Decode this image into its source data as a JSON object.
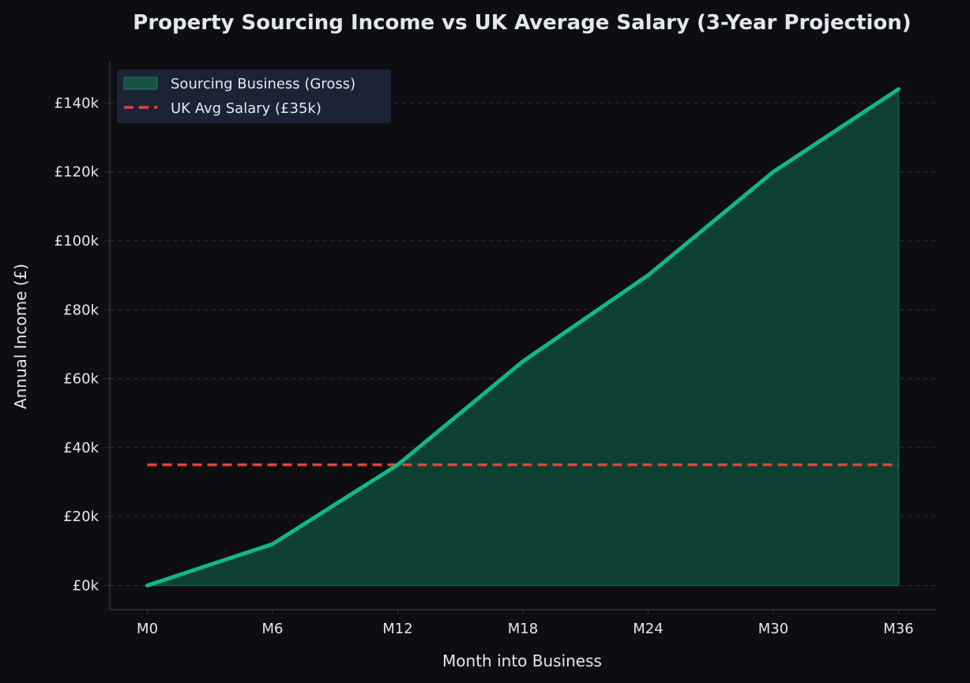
{
  "chart_data": {
    "type": "area",
    "title": "Property Sourcing Income vs UK Average Salary (3-Year Projection)",
    "xlabel": "Month into Business",
    "ylabel": "Annual Income (£)",
    "categories": [
      "M0",
      "M6",
      "M12",
      "M18",
      "M24",
      "M30",
      "M36"
    ],
    "x": [
      0,
      6,
      12,
      18,
      24,
      30,
      36
    ],
    "xlim": [
      -1.8,
      37.8
    ],
    "ylim": [
      -7000,
      152000
    ],
    "yticks": [
      0,
      20000,
      40000,
      60000,
      80000,
      100000,
      120000,
      140000
    ],
    "ytick_labels": [
      "£0k",
      "£20k",
      "£40k",
      "£60k",
      "£80k",
      "£100k",
      "£120k",
      "£140k"
    ],
    "grid": "y-dashed",
    "legend_position": "top-left",
    "series": [
      {
        "name": "Sourcing Business (Gross)",
        "kind": "area-line",
        "values": [
          0,
          12000,
          35000,
          65000,
          90000,
          120000,
          144000
        ],
        "color": "#10b981",
        "fill_color": "#0d3f33"
      },
      {
        "name": "UK Avg Salary (£35k)",
        "kind": "dashed-line",
        "values": [
          35000,
          35000,
          35000,
          35000,
          35000,
          35000,
          35000
        ],
        "color": "#e0453c"
      }
    ],
    "colors": {
      "background": "#0e0e12",
      "text": "#e3e8f0",
      "grid": "#2a2f3d",
      "axis": "#2c3445",
      "legend_bg": "#1b2434"
    }
  }
}
